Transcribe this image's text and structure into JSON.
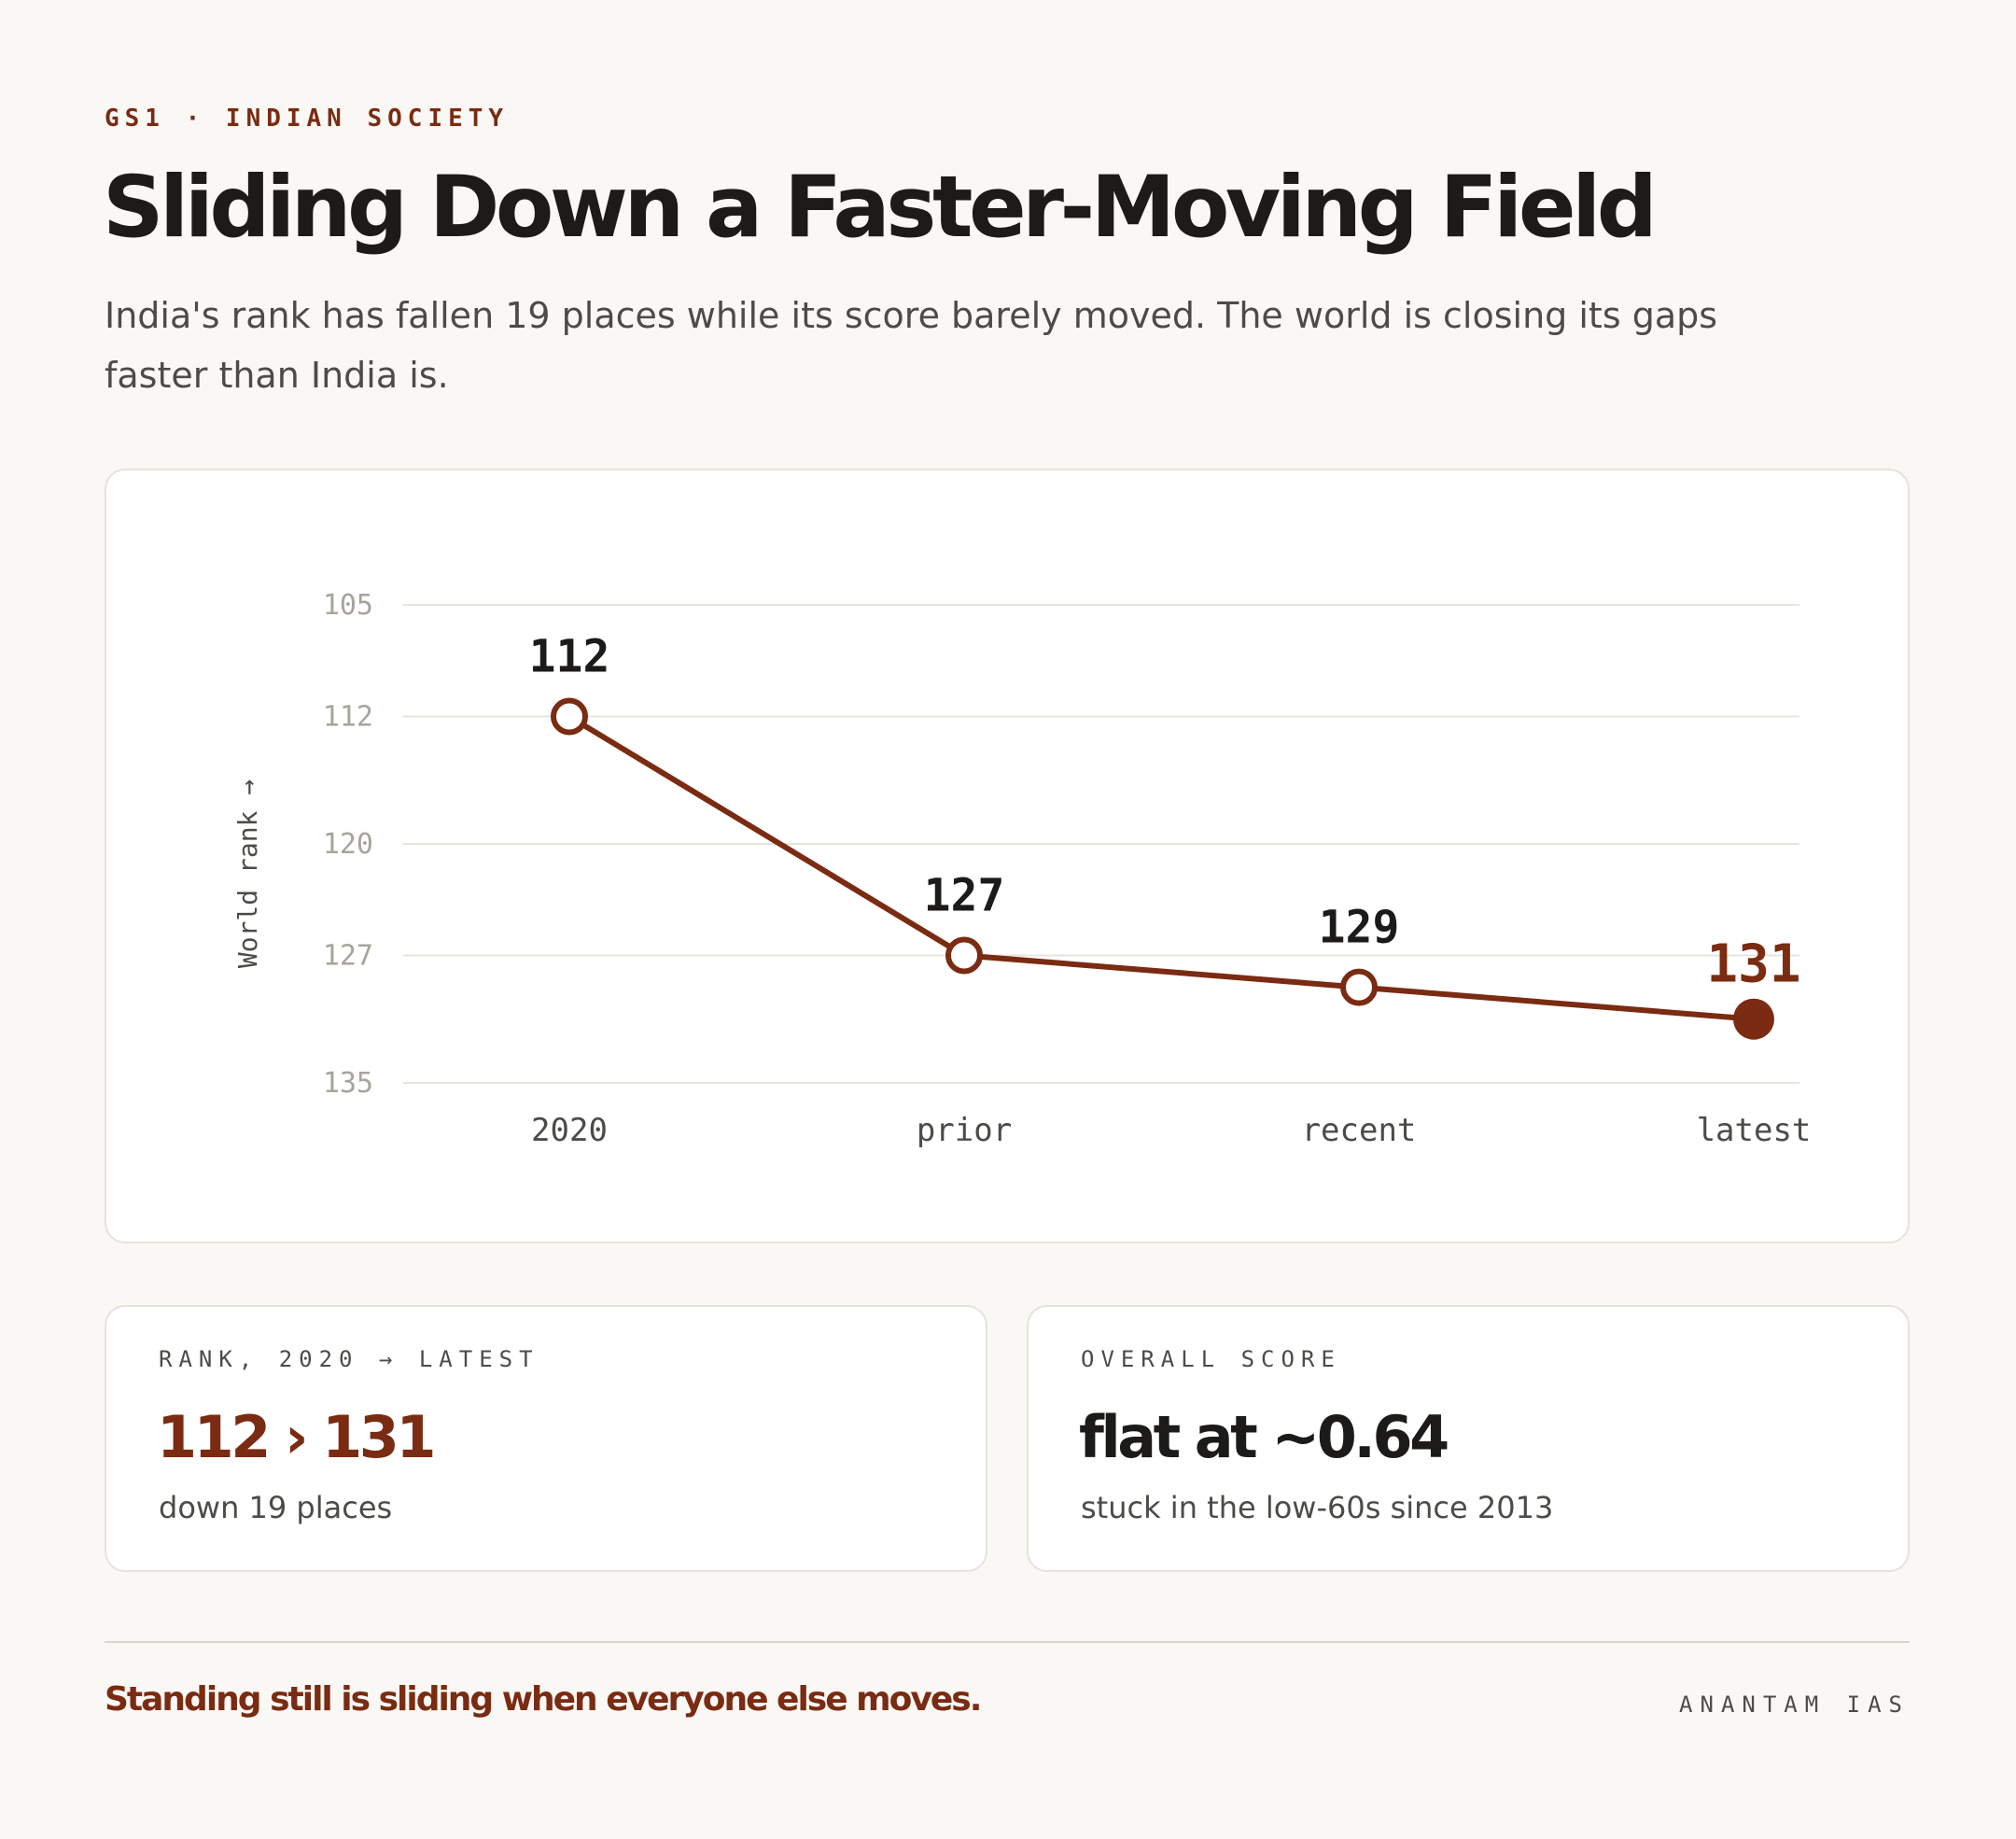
{
  "kicker": "GS1 · INDIAN SOCIETY",
  "title": "Sliding Down a Faster-Moving Field",
  "subtitle": "India's rank has fallen 19 places while its score barely moved. The world is closing its gaps faster than India is.",
  "colors": {
    "accent": "#7a2b12",
    "text": "#1c1b19",
    "muted": "#4d4b47",
    "tick": "#a8a49c",
    "grid": "#e7e4dd",
    "card": "#ffffff",
    "background": "#f9f8f4"
  },
  "chart_data": {
    "type": "line",
    "categories": [
      "2020",
      "prior",
      "recent",
      "latest"
    ],
    "series": [
      {
        "values": [
          112,
          127,
          129,
          131
        ]
      }
    ],
    "data_labels": [
      "112",
      "127",
      "129",
      "131"
    ],
    "highlight_index": 3,
    "ylabel": "World rank →",
    "y_ticks": [
      105,
      112,
      120,
      127,
      135
    ],
    "ylim": [
      105,
      135
    ],
    "y_axis_inverted": false,
    "grid": true,
    "legend": "none"
  },
  "stats": [
    {
      "label": "RANK, 2020 → LATEST",
      "value": "112 › 131",
      "note": "down 19 places"
    },
    {
      "label": "OVERALL SCORE",
      "value": "flat at ~0.64",
      "note": "stuck in the low-60s since 2013"
    }
  ],
  "footer": {
    "tagline": "Standing still is sliding when everyone else moves.",
    "brand": "ANANTAM IAS"
  }
}
